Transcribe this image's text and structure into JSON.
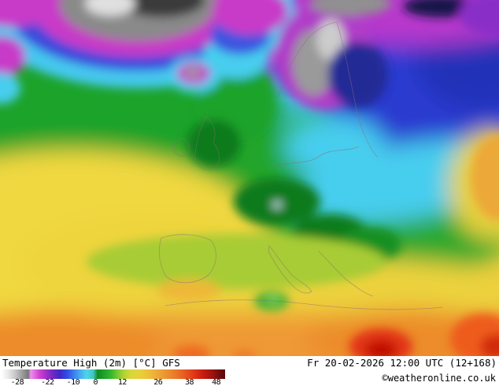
{
  "legend": {
    "title": "Temperature High (2m) [°C] GFS",
    "datetime": "Fr 20-02-2026 12:00 UTC (12+168)",
    "copyright": "©weatheronline.co.uk"
  },
  "scale": {
    "unit": "°C",
    "ticks": [
      {
        "label": "-28",
        "pos": 7
      },
      {
        "label": "-22",
        "pos": 20.5
      },
      {
        "label": "-10",
        "pos": 32
      },
      {
        "label": "0",
        "pos": 42
      },
      {
        "label": "12",
        "pos": 54
      },
      {
        "label": "26",
        "pos": 70
      },
      {
        "label": "38",
        "pos": 84
      },
      {
        "label": "48",
        "pos": 96
      }
    ],
    "stops": [
      {
        "pos": 0,
        "color": "#ffffff"
      },
      {
        "pos": 3,
        "color": "#e8e8e8"
      },
      {
        "pos": 6,
        "color": "#c8c8c8"
      },
      {
        "pos": 9,
        "color": "#a0a0a0"
      },
      {
        "pos": 12,
        "color": "#787878"
      },
      {
        "pos": 13,
        "color": "#ee90ee"
      },
      {
        "pos": 17,
        "color": "#d040d0"
      },
      {
        "pos": 20,
        "color": "#a030c8"
      },
      {
        "pos": 23,
        "color": "#7028c0"
      },
      {
        "pos": 26,
        "color": "#4028c8"
      },
      {
        "pos": 29,
        "color": "#3048e0"
      },
      {
        "pos": 32,
        "color": "#3c78ee"
      },
      {
        "pos": 35,
        "color": "#46aaee"
      },
      {
        "pos": 38,
        "color": "#50d2ee"
      },
      {
        "pos": 41,
        "color": "#3ec8c0"
      },
      {
        "pos": 43,
        "color": "#128a1e"
      },
      {
        "pos": 46,
        "color": "#1fa32c"
      },
      {
        "pos": 49,
        "color": "#35b82e"
      },
      {
        "pos": 52,
        "color": "#7ac832"
      },
      {
        "pos": 55,
        "color": "#b4d434"
      },
      {
        "pos": 58,
        "color": "#d8d838"
      },
      {
        "pos": 62,
        "color": "#e8d03a"
      },
      {
        "pos": 66,
        "color": "#eebe38"
      },
      {
        "pos": 70,
        "color": "#eca836"
      },
      {
        "pos": 74,
        "color": "#ec9030"
      },
      {
        "pos": 78,
        "color": "#ea7828"
      },
      {
        "pos": 82,
        "color": "#e65a20"
      },
      {
        "pos": 86,
        "color": "#e03818"
      },
      {
        "pos": 90,
        "color": "#c81c10"
      },
      {
        "pos": 94,
        "color": "#a01410"
      },
      {
        "pos": 97,
        "color": "#780e0e"
      },
      {
        "pos": 100,
        "color": "#5a0a0a"
      }
    ]
  }
}
